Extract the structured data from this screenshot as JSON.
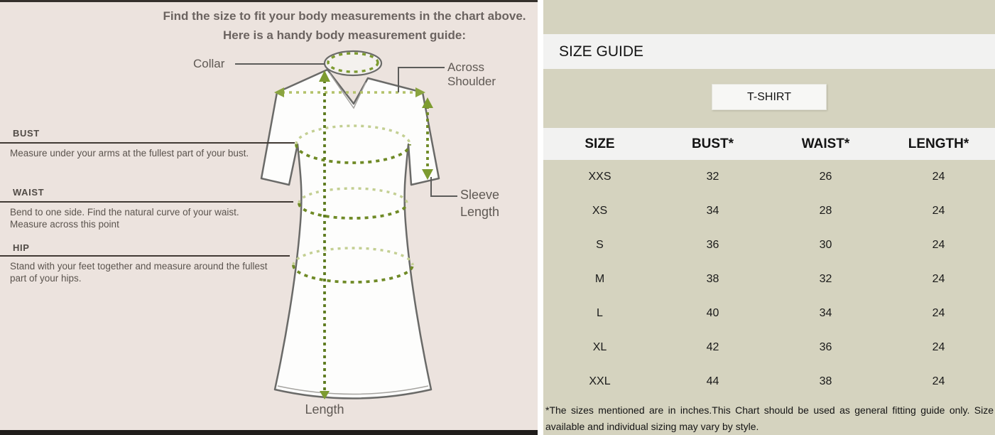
{
  "colors": {
    "left_bg": "#ece3de",
    "right_bg": "#d5d3bf",
    "strip_bg": "#f2f2f1",
    "measure_green_dark": "#6f8a26",
    "measure_green_light": "#c3cf92",
    "garment_outline": "#6a6a68",
    "left_text": "#5b544e",
    "dark_border": "#201d1b"
  },
  "left_panel": {
    "heading_line1": "Find the size to fit your body measurements in the chart above.",
    "heading_line2": "Here is a handy body measurement guide:",
    "collar_label": "Collar",
    "across_shoulder_line1": "Across",
    "across_shoulder_line2": "Shoulder",
    "sleeve_length_line1": "Sleeve",
    "sleeve_length_line2": "Length",
    "length_label": "Length",
    "sections": [
      {
        "title": "BUST",
        "desc": "Measure under your arms at the fullest part of your bust."
      },
      {
        "title": "WAIST",
        "desc": "Bend to one side. Find the natural curve of your waist. Measure across this point"
      },
      {
        "title": "HIP",
        "desc": "Stand with your feet together and measure around the fullest part of your hips."
      }
    ]
  },
  "right_panel": {
    "title": "SIZE GUIDE",
    "tab_label": "T-SHIRT",
    "table": {
      "columns": [
        "SIZE",
        "BUST*",
        "WAIST*",
        "LENGTH*"
      ],
      "rows": [
        [
          "XXS",
          "32",
          "26",
          "24"
        ],
        [
          "XS",
          "34",
          "28",
          "24"
        ],
        [
          "S",
          "36",
          "30",
          "24"
        ],
        [
          "M",
          "38",
          "32",
          "24"
        ],
        [
          "L",
          "40",
          "34",
          "24"
        ],
        [
          "XL",
          "42",
          "36",
          "24"
        ],
        [
          "XXL",
          "44",
          "38",
          "24"
        ]
      ]
    },
    "footnote": "*The sizes mentioned are in inches.This Chart should be used as general fitting guide only. Size available and individual sizing may vary by style."
  }
}
